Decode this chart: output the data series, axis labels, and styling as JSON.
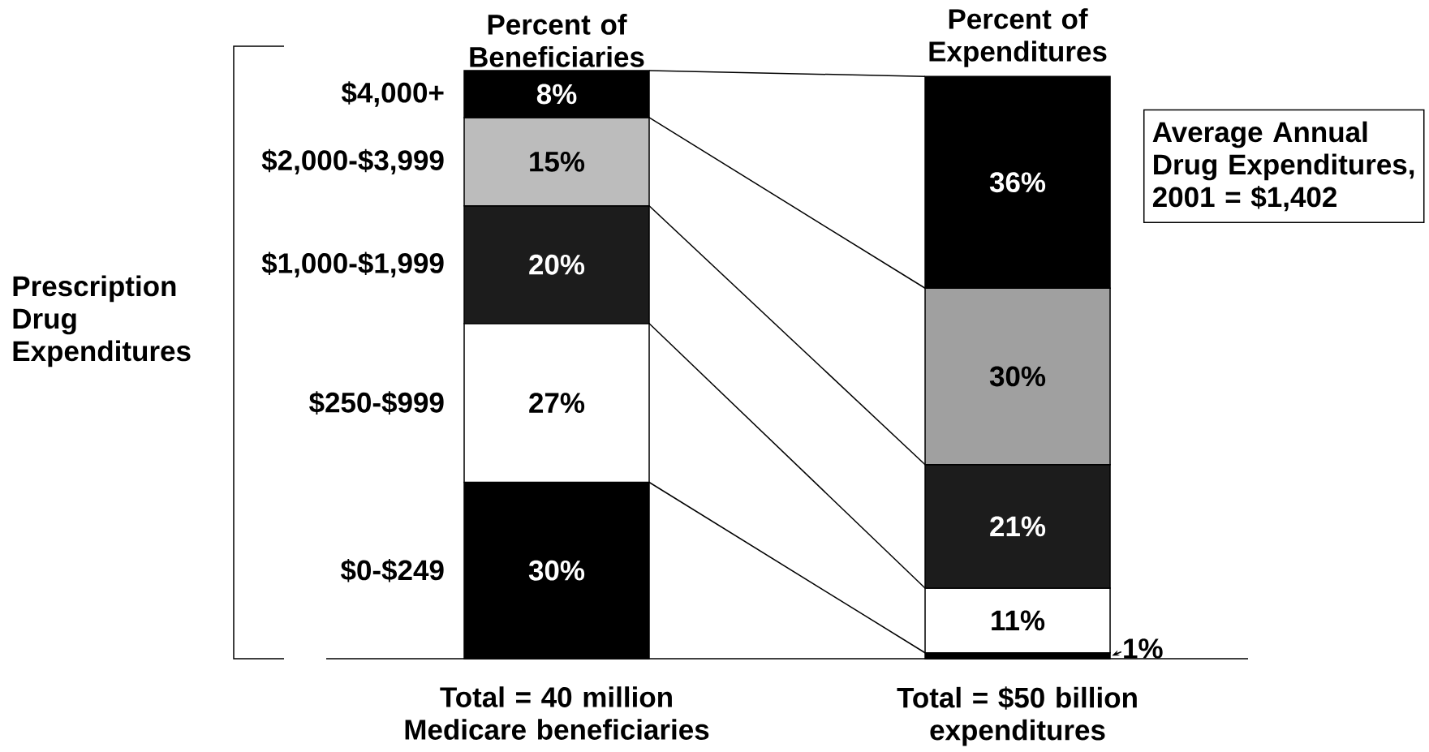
{
  "chart_data": {
    "type": "bar",
    "stacked": true,
    "ylabel": "Prescription Drug Expenditures",
    "categories": [
      "Percent of Beneficiaries",
      "Percent of Expenditures"
    ],
    "series": [
      {
        "name": "$0-$249",
        "color": "#000000",
        "values": [
          30,
          1
        ],
        "value_labels": [
          "30%",
          "1%"
        ]
      },
      {
        "name": "$250-$999",
        "color": "#ffffff",
        "values": [
          27,
          11
        ],
        "value_labels": [
          "27%",
          "11%"
        ]
      },
      {
        "name": "$1,000-$1,999",
        "color": "#1c1c1c",
        "values": [
          20,
          21
        ],
        "value_labels": [
          "20%",
          "21%"
        ]
      },
      {
        "name": "$2,000-$3,999",
        "colors": [
          "#bcbcbc",
          "#a0a0a0"
        ],
        "values": [
          15,
          30
        ],
        "value_labels": [
          "15%",
          "30%"
        ]
      },
      {
        "name": "$4,000+",
        "color": "#000000",
        "values": [
          8,
          36
        ],
        "value_labels": [
          "8%",
          "36%"
        ]
      }
    ],
    "annotations": [
      "Total = 40 million Medicare beneficiaries",
      "Total = $50 billion expenditures",
      "Average Annual Drug Expenditures, 2001 = $1,402"
    ]
  }
}
